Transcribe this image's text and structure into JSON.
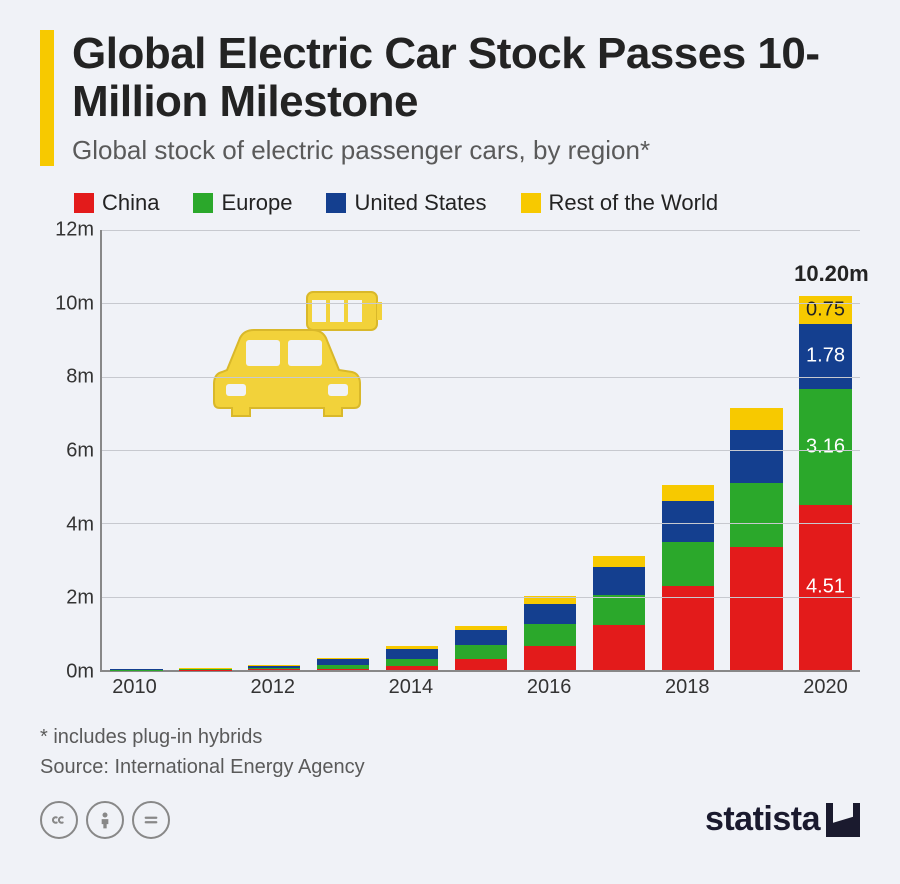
{
  "header": {
    "title": "Global Electric Car Stock Passes 10-Million Milestone",
    "subtitle": "Global stock of electric passenger cars, by region*",
    "accent_color": "#f7c900"
  },
  "legend": [
    {
      "label": "China",
      "color": "#e31b1b"
    },
    {
      "label": "Europe",
      "color": "#2ba82b"
    },
    {
      "label": "United States",
      "color": "#143f8f"
    },
    {
      "label": "Rest of the World",
      "color": "#f7c900"
    }
  ],
  "chart": {
    "type": "stacked-bar",
    "ylim": [
      0,
      12
    ],
    "y_unit_suffix": "m",
    "yticks": [
      0,
      2,
      4,
      6,
      8,
      10,
      12
    ],
    "grid_color": "#c7c9cf",
    "axis_color": "#888888",
    "background_color": "#f0f2f7",
    "years": [
      2010,
      2011,
      2012,
      2013,
      2014,
      2015,
      2016,
      2017,
      2018,
      2019,
      2020
    ],
    "x_tick_labels": [
      "2010",
      "",
      "2012",
      "",
      "2014",
      "",
      "2016",
      "",
      "2018",
      "",
      "2020"
    ],
    "series": [
      "China",
      "Europe",
      "United States",
      "Rest of the World"
    ],
    "series_colors": [
      "#e31b1b",
      "#2ba82b",
      "#143f8f",
      "#f7c900"
    ],
    "data": [
      [
        0.0,
        0.01,
        0.01,
        0.0
      ],
      [
        0.01,
        0.02,
        0.02,
        0.01
      ],
      [
        0.02,
        0.04,
        0.06,
        0.02
      ],
      [
        0.04,
        0.09,
        0.17,
        0.03
      ],
      [
        0.1,
        0.2,
        0.28,
        0.07
      ],
      [
        0.31,
        0.38,
        0.4,
        0.12
      ],
      [
        0.65,
        0.6,
        0.56,
        0.2
      ],
      [
        1.23,
        0.82,
        0.76,
        0.3
      ],
      [
        2.3,
        1.2,
        1.1,
        0.45
      ],
      [
        3.35,
        1.75,
        1.45,
        0.6
      ],
      [
        4.51,
        3.16,
        1.78,
        0.75
      ]
    ],
    "segment_labels_year_index": 10,
    "segment_labels": [
      "4.51",
      "3.16",
      "1.78",
      "0.75"
    ],
    "segment_label_colors": [
      "#ffffff",
      "#ffffff",
      "#ffffff",
      "#232323"
    ],
    "top_label": "10.20m",
    "icon_color": "#f2d23a",
    "label_fontsize": 20,
    "title_fontsize": 44
  },
  "footnote": {
    "note": "* includes plug-in hybrids",
    "source": "Source: International Energy Agency"
  },
  "footer": {
    "cc": [
      "cc",
      "by",
      "nd"
    ],
    "brand": "statista"
  }
}
